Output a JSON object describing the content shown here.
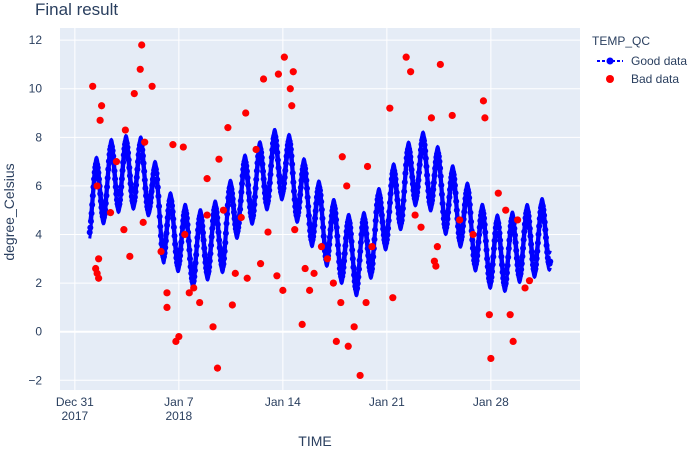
{
  "chart_data": {
    "type": "scatter",
    "title": "Final result",
    "xlabel": "TIME",
    "ylabel": "degree_Celsius",
    "xlim": [
      "2017-12-30",
      "2018-02-03"
    ],
    "ylim": [
      -2.4,
      12.5
    ],
    "grid": true,
    "legend_position": "top-right",
    "legend_title": "TEMP_QC",
    "x_ticks": [
      {
        "date": "2017-12-31",
        "line1": "Dec 31",
        "line2": "2017"
      },
      {
        "date": "2018-01-07",
        "line1": "Jan 7",
        "line2": "2018"
      },
      {
        "date": "2018-01-14",
        "line1": "Jan 14",
        "line2": ""
      },
      {
        "date": "2018-01-21",
        "line1": "Jan 21",
        "line2": ""
      },
      {
        "date": "2018-01-28",
        "line1": "Jan 28",
        "line2": ""
      }
    ],
    "y_ticks": [
      -2,
      0,
      2,
      4,
      6,
      8,
      10,
      12
    ],
    "series": [
      {
        "name": "Good data",
        "mode": "lines+markers",
        "color": "#0000ff",
        "x_range": [
          "2018-01-01",
          "2018-02-01"
        ],
        "trend": [
          [
            "2018-01-01",
            5.3
          ],
          [
            "2018-01-02.5",
            6.4
          ],
          [
            "2018-01-04",
            6.6
          ],
          [
            "2018-01-05",
            6.3
          ],
          [
            "2018-01-06",
            4.3
          ],
          [
            "2018-01-07",
            4.0
          ],
          [
            "2018-01-08",
            3.3
          ],
          [
            "2018-01-09",
            3.7
          ],
          [
            "2018-01-10",
            4.0
          ],
          [
            "2018-01-11",
            5.5
          ],
          [
            "2018-01-12",
            6.0
          ],
          [
            "2018-01-13",
            6.6
          ],
          [
            "2018-01-14",
            7.0
          ],
          [
            "2018-01-15",
            6.0
          ],
          [
            "2018-01-16",
            5.0
          ],
          [
            "2018-01-17",
            4.2
          ],
          [
            "2018-01-18",
            3.5
          ],
          [
            "2018-01-19",
            3.0
          ],
          [
            "2018-01-20",
            3.8
          ],
          [
            "2018-01-21",
            5.0
          ],
          [
            "2018-01-22",
            5.8
          ],
          [
            "2018-01-23",
            6.8
          ],
          [
            "2018-01-24",
            6.5
          ],
          [
            "2018-01-25",
            5.5
          ],
          [
            "2018-01-26",
            5.0
          ],
          [
            "2018-01-27",
            4.0
          ],
          [
            "2018-01-28",
            3.3
          ],
          [
            "2018-01-29",
            3.2
          ],
          [
            "2018-01-30",
            3.6
          ],
          [
            "2018-01-31",
            3.8
          ],
          [
            "2018-02-01",
            4.1
          ]
        ],
        "daily_amplitude": 1.3
      },
      {
        "name": "Bad data",
        "mode": "markers",
        "color": "#ff0000",
        "points": [
          [
            "2018-01-01.2",
            10.1
          ],
          [
            "2018-01-01.4",
            2.6
          ],
          [
            "2018-01-01.5",
            2.4
          ],
          [
            "2018-01-01.6",
            2.2
          ],
          [
            "2018-01-01.6",
            3.0
          ],
          [
            "2018-01-01.7",
            8.7
          ],
          [
            "2018-01-01.8",
            9.3
          ],
          [
            "2018-01-01.5",
            6.0
          ],
          [
            "2018-01-02.4",
            4.9
          ],
          [
            "2018-01-02.8",
            7.0
          ],
          [
            "2018-01-03.4",
            8.3
          ],
          [
            "2018-01-03.7",
            3.1
          ],
          [
            "2018-01-03.3",
            4.2
          ],
          [
            "2018-01-04.0",
            9.8
          ],
          [
            "2018-01-04.4",
            10.8
          ],
          [
            "2018-01-04.5",
            11.8
          ],
          [
            "2018-01-04.7",
            7.8
          ],
          [
            "2018-01-04.6",
            4.5
          ],
          [
            "2018-01-05.2",
            10.1
          ],
          [
            "2018-01-05.8",
            3.3
          ],
          [
            "2018-01-06.2",
            1.6
          ],
          [
            "2018-01-06.2",
            1.0
          ],
          [
            "2018-01-06.6",
            7.7
          ],
          [
            "2018-01-06.8",
            -0.4
          ],
          [
            "2018-01-07.0",
            -0.2
          ],
          [
            "2018-01-07.3",
            7.6
          ],
          [
            "2018-01-07.4",
            4.0
          ],
          [
            "2018-01-07.7",
            1.6
          ],
          [
            "2018-01-08.0",
            1.8
          ],
          [
            "2018-01-08.4",
            1.2
          ],
          [
            "2018-01-08.9",
            6.3
          ],
          [
            "2018-01-08.9",
            4.8
          ],
          [
            "2018-01-09.3",
            0.2
          ],
          [
            "2018-01-09.6",
            -1.5
          ],
          [
            "2018-01-09.7",
            7.1
          ],
          [
            "2018-01-10.0",
            5.0
          ],
          [
            "2018-01-10.3",
            8.4
          ],
          [
            "2018-01-10.6",
            1.1
          ],
          [
            "2018-01-10.8",
            2.4
          ],
          [
            "2018-01-11.2",
            4.7
          ],
          [
            "2018-01-11.5",
            9.0
          ],
          [
            "2018-01-11.6",
            2.2
          ],
          [
            "2018-01-12.2",
            7.5
          ],
          [
            "2018-01-12.5",
            2.8
          ],
          [
            "2018-01-12.7",
            10.4
          ],
          [
            "2018-01-13.0",
            4.1
          ],
          [
            "2018-01-13.6",
            2.3
          ],
          [
            "2018-01-13.7",
            10.6
          ],
          [
            "2018-01-14.0",
            1.7
          ],
          [
            "2018-01-14.1",
            11.3
          ],
          [
            "2018-01-14.5",
            10.0
          ],
          [
            "2018-01-14.6",
            9.3
          ],
          [
            "2018-01-14.7",
            10.7
          ],
          [
            "2018-01-14.8",
            4.2
          ],
          [
            "2018-01-15.3",
            0.3
          ],
          [
            "2018-01-15.5",
            2.6
          ],
          [
            "2018-01-15.8",
            1.7
          ],
          [
            "2018-01-16.1",
            2.4
          ],
          [
            "2018-01-16.6",
            3.5
          ],
          [
            "2018-01-17.0",
            3.0
          ],
          [
            "2018-01-17.4",
            2.0
          ],
          [
            "2018-01-17.6",
            -0.4
          ],
          [
            "2018-01-17.9",
            1.2
          ],
          [
            "2018-01-18.0",
            7.2
          ],
          [
            "2018-01-18.3",
            6.0
          ],
          [
            "2018-01-18.4",
            -0.6
          ],
          [
            "2018-01-18.8",
            0.2
          ],
          [
            "2018-01-19.2",
            -1.8
          ],
          [
            "2018-01-19.6",
            1.2
          ],
          [
            "2018-01-19.7",
            6.8
          ],
          [
            "2018-01-20.0",
            3.5
          ],
          [
            "2018-01-21.2",
            9.2
          ],
          [
            "2018-01-21.4",
            1.4
          ],
          [
            "2018-01-22.3",
            11.3
          ],
          [
            "2018-01-22.6",
            10.7
          ],
          [
            "2018-01-22.9",
            4.8
          ],
          [
            "2018-01-23.3",
            4.3
          ],
          [
            "2018-01-24.0",
            8.8
          ],
          [
            "2018-01-24.4",
            3.5
          ],
          [
            "2018-01-24.6",
            11.0
          ],
          [
            "2018-01-24.2",
            2.9
          ],
          [
            "2018-01-24.3",
            2.7
          ],
          [
            "2018-01-25.4",
            8.9
          ],
          [
            "2018-01-25.9",
            4.6
          ],
          [
            "2018-01-26.8",
            4.0
          ],
          [
            "2018-01-27.5",
            9.5
          ],
          [
            "2018-01-27.6",
            8.8
          ],
          [
            "2018-01-27.9",
            0.7
          ],
          [
            "2018-01-28.0",
            -1.1
          ],
          [
            "2018-01-28.5",
            5.7
          ],
          [
            "2018-01-29.0",
            5.0
          ],
          [
            "2018-01-29.3",
            0.7
          ],
          [
            "2018-01-29.5",
            -0.4
          ],
          [
            "2018-01-29.8",
            4.6
          ],
          [
            "2018-01-30.3",
            1.8
          ],
          [
            "2018-01-30.6",
            2.1
          ]
        ]
      }
    ]
  }
}
